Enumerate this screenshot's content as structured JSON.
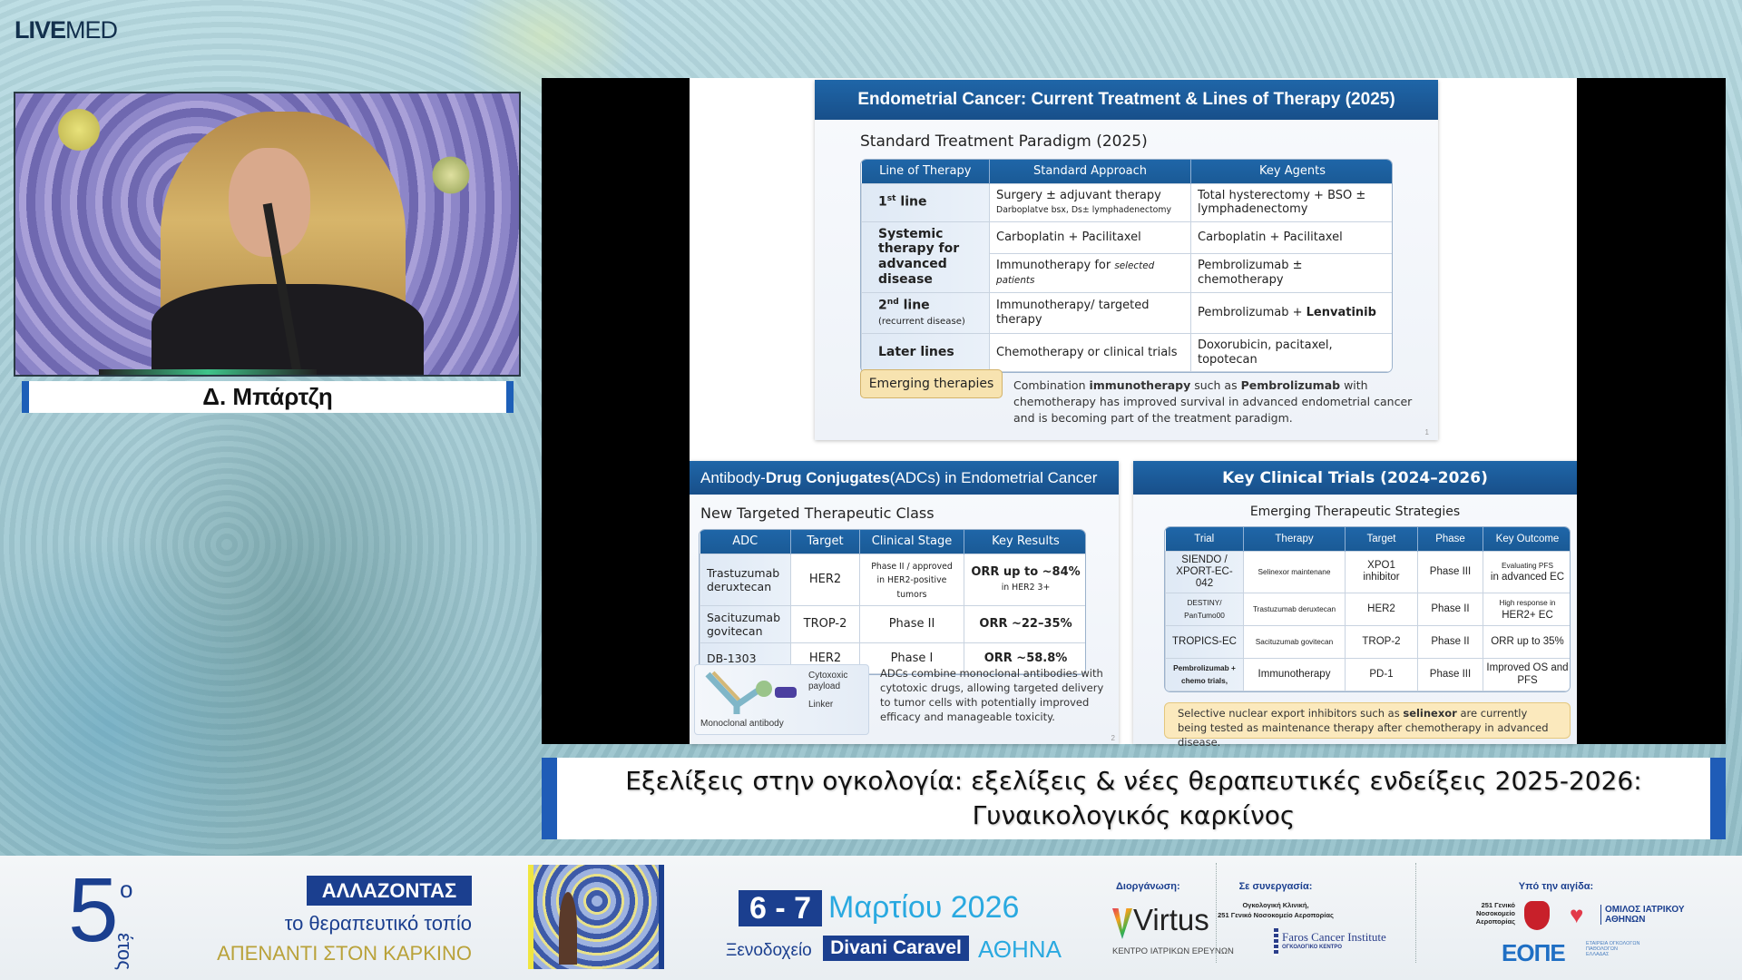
{
  "logo": {
    "bold": "LIVE",
    "light": "MED"
  },
  "speaker": {
    "name": "Δ. Μπάρτζη"
  },
  "slide": {
    "top": {
      "title": "Endometrial Cancer: Current Treatment & Lines of Therapy (2025)",
      "subtitle": "Standard Treatment Paradigm (2025)",
      "table": {
        "headers": [
          "Line of Therapy",
          "Standard Approach",
          "Key Agents"
        ],
        "rows": [
          [
            {
              "segs": [
                {
                  "t": "1",
                  "b": true
                },
                {
                  "t": "st",
                  "sup": true,
                  "b": true
                },
                {
                  "t": " line",
                  "b": true
                }
              ]
            },
            {
              "segs": [
                {
                  "t": "Surgery ± adjuvant therapy"
                },
                {
                  "br": true
                },
                {
                  "t": "Darboplatve bsx, Ds± lymphadenectomy",
                  "small": true
                }
              ]
            },
            "Total hysterectomy + BSO ± lymphadenectomy"
          ],
          [
            {
              "segs": [
                {
                  "t": "Systemic therapy for advanced disease",
                  "b": true
                }
              ],
              "rowspan": 2
            },
            "Carboplatin + Pacilitaxel",
            "Carboplatin + Pacilitaxel"
          ],
          [
            {
              "segs": [
                {
                  "t": "Immunotherapy for "
                },
                {
                  "t": "selected patients",
                  "i": true
                }
              ]
            },
            "Pembrolizumab ± chemotherapy"
          ],
          [
            {
              "segs": [
                {
                  "t": "2",
                  "b": true
                },
                {
                  "t": "nd",
                  "sup": true,
                  "b": true
                },
                {
                  "t": " line",
                  "b": true
                },
                {
                  "br": true
                },
                {
                  "t": "(recurrent disease)",
                  "small": true
                }
              ]
            },
            "Immunotherapy/ targeted therapy",
            {
              "segs": [
                {
                  "t": "Pembrolizumab + "
                },
                {
                  "t": "Lenvatinib",
                  "b": true
                }
              ]
            }
          ],
          [
            {
              "segs": [
                {
                  "t": "Later lines",
                  "b": true
                }
              ]
            },
            "Chemotherapy or clinical trials",
            "Doxorubicin, pacitaxel, topotecan"
          ]
        ]
      },
      "emerging_button": "Emerging therapies",
      "emerging_note": [
        {
          "t": "Combination "
        },
        {
          "t": "immunotherapy",
          "b": true
        },
        {
          "t": " such as "
        },
        {
          "t": "Pembrolizumab",
          "b": true
        },
        {
          "t": " with chemotherapy has improved survival in advanced endometrial cancer and is becoming part of the treatment paradigm."
        }
      ],
      "page": "1"
    },
    "adc": {
      "title": [
        {
          "t": "Antibody-"
        },
        {
          "t": "Drug Conjugates",
          "b": true
        },
        {
          "t": " (ADCs) in Endometrial Cancer"
        }
      ],
      "subtitle": "New Targeted Therapeutic Class",
      "table": {
        "headers": [
          "ADC",
          "Target",
          "Clinical Stage",
          "Key Results"
        ],
        "rows": [
          [
            "Trastuzumab deruxtecan",
            "HER2",
            {
              "segs": [
                {
                  "t": "Phase II / approved",
                  "small": true
                },
                {
                  "br": true
                },
                {
                  "t": "in HER2-positive tumors",
                  "small": true
                }
              ]
            },
            {
              "segs": [
                {
                  "t": "ORR up to ~84%",
                  "b": true
                },
                {
                  "br": true
                },
                {
                  "t": "in HER2 3+",
                  "small": true
                }
              ]
            }
          ],
          [
            "Sacituzumab govitecan",
            "TROP-2",
            "Phase II",
            {
              "segs": [
                {
                  "t": "ORR ~22–35%",
                  "b": true
                }
              ]
            }
          ],
          [
            "DB-1303",
            "HER2",
            "Phase I",
            {
              "segs": [
                {
                  "t": "ORR ~58.8%",
                  "b": true
                }
              ]
            }
          ]
        ]
      },
      "diagram": {
        "payload": "Cytoxoxic payload",
        "linker": "Linker",
        "antibody": "Monoclonal antibody"
      },
      "note": "ADCs combine monoclonal antibodies with cytotoxic drugs, allowing targeted delivery to tumor cells with potentially improved efficacy and manageable toxicity.",
      "page": "2"
    },
    "trials": {
      "title": "Key Clinical Trials (2024–2026)",
      "subtitle": "Emerging Therapeutic Strategies",
      "table": {
        "headers": [
          "Trial",
          "Therapy",
          "Target",
          "Phase",
          "Key Outcome"
        ],
        "rows": [
          [
            "SIENDO / XPORT-EC-042",
            {
              "segs": [
                {
                  "t": "Selinexor maintenane",
                  "small": true
                }
              ]
            },
            "XPO1 inhibitor",
            "Phase III",
            {
              "segs": [
                {
                  "t": "Evaluating PFS",
                  "small": true
                },
                {
                  "br": true
                },
                {
                  "t": "in advanced EC"
                }
              ]
            }
          ],
          [
            {
              "segs": [
                {
                  "t": "DESTINY/ PanTumo00",
                  "small": true
                }
              ]
            },
            {
              "segs": [
                {
                  "t": "Trastuzumab deruxtecan",
                  "small": true
                }
              ]
            },
            "HER2",
            "Phase II",
            {
              "segs": [
                {
                  "t": "High response in",
                  "small": true
                },
                {
                  "br": true
                },
                {
                  "t": "HER2+ EC"
                }
              ]
            }
          ],
          [
            "TROPICS-EC",
            {
              "segs": [
                {
                  "t": "Sacituzumab govitecan",
                  "small": true
                }
              ]
            },
            "TROP-2",
            "Phase II",
            "ORR up to 35%"
          ],
          [
            {
              "segs": [
                {
                  "t": "Pembrolizumab + chemo trials,",
                  "small": true,
                  "b": true
                }
              ]
            },
            "Immunotherapy",
            "PD-1",
            "Phase III",
            "Improved OS and PFS"
          ]
        ]
      },
      "note": [
        {
          "t": "Selective nuclear export inhibitors such as "
        },
        {
          "t": "selinexor",
          "b": true
        },
        {
          "t": " are currently being tested as maintenance therapy after chemotherapy in advanced disease."
        }
      ]
    }
  },
  "caption": "Εξελίξεις στην ογκολογία: εξελίξεις & νέες θεραπευτικές ενδείξεις 2025-2026: Γυναικολογικός καρκίνος",
  "footer": {
    "edition_number": "5",
    "edition_suffix": "ο",
    "edition_word": "έτος",
    "headline": "ΑΛΛΑΖΟΝΤΑΣ",
    "line2": "το θεραπευτικό τοπίο",
    "line3": "ΑΠΕΝΑΝΤΙ ΣΤΟΝ ΚΑΡΚΙΝΟ",
    "dates": "6 - 7",
    "month_year": "Μαρτίου 2026",
    "hotel_label": "Ξενοδοχείο",
    "hotel": "Divani Caravel",
    "city": "ΑΘΗΝΑ",
    "organizer_label": "Διοργάνωση:",
    "organizer": "Virtus",
    "organizer_sub": "ΚΕΝΤΡΟ ΙΑΤΡΙΚΩΝ ΕΡΕΥΝΩΝ",
    "partner_label": "Σε συνεργασία:",
    "partner_line1": "Ογκολογική Κλινική,",
    "partner_line2": "251 Γενικό Νοσοκομείο Αεροπορίας",
    "faros": "Faros Cancer Institute",
    "faros_sub": "ΟΓΚΟΛΟΓΙΚΟ ΚΕΝΤΡΟ",
    "auspices_label": "Υπό την αιγίδα:",
    "hospital": "251 Γενικό Νοσοκομείο Αεροπορίας",
    "omilos": "ΟΜΙΛΟΣ ΙΑΤΡΙΚΟΥ ΑΘΗΝΩΝ",
    "eope": "ΕΟΠΕ",
    "eope_sub": "ΕΤΑΙΡΕΙΑ ΟΓΚΟΛΟΓΩΝ ΠΑΘΟΛΟΓΩΝ ΕΛΛΑΔΑΣ"
  },
  "colors": {
    "slide_blue": "#1a5a96",
    "caption_blue": "#1f5cb7",
    "note_yellow": "#fbe9bd",
    "footer_navy": "#1b3f8f",
    "footer_gold": "#b9a23a"
  }
}
